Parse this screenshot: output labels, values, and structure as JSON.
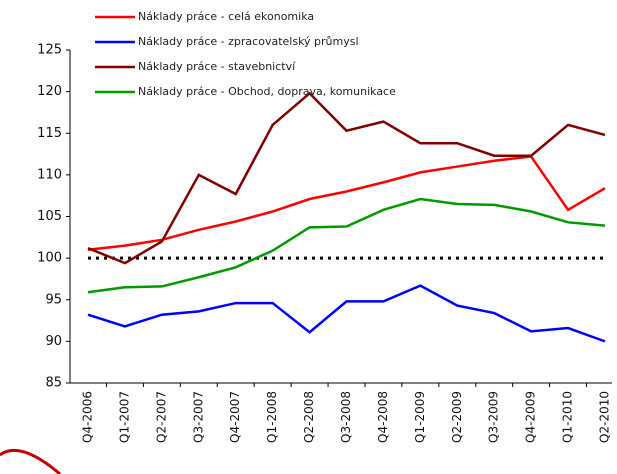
{
  "chart_data": {
    "type": "line",
    "categories": [
      "Q4-2006",
      "Q1-2007",
      "Q2-2007",
      "Q3-2007",
      "Q4-2007",
      "Q1-2008",
      "Q2-2008",
      "Q3-2008",
      "Q4-2008",
      "Q1-2009",
      "Q2-2009",
      "Q3-2009",
      "Q4-2009",
      "Q1-2010",
      "Q2-2010"
    ],
    "series": [
      {
        "name": "Náklady práce - celá ekonomika",
        "color": "#ff0000",
        "values": [
          101,
          101.5,
          102.2,
          103.4,
          104.4,
          105.6,
          107.1,
          108,
          109.1,
          110.3,
          111,
          111.7,
          112.2,
          105.8,
          108.4
        ]
      },
      {
        "name": "Náklady práce - zpracovatelský průmysl",
        "color": "#0000ff",
        "values": [
          93.2,
          91.8,
          93.2,
          93.6,
          94.6,
          94.6,
          91.1,
          94.8,
          94.8,
          96.7,
          94.3,
          93.4,
          91.2,
          91.6,
          90
        ]
      },
      {
        "name": "Náklady práce - stavebnictví",
        "color": "#800000",
        "values": [
          101.2,
          99.4,
          102,
          110,
          107.7,
          116,
          119.8,
          115.3,
          116.4,
          113.8,
          113.8,
          112.3,
          112.3,
          116,
          114.8
        ]
      },
      {
        "name": "Náklady práce - Obchod, doprava, komunikace",
        "color": "#009900",
        "values": [
          95.9,
          96.5,
          96.6,
          97.7,
          98.9,
          100.9,
          103.7,
          103.8,
          105.8,
          107.1,
          106.5,
          106.4,
          105.6,
          104.3,
          103.9
        ]
      }
    ],
    "reference_line": 100,
    "ylim": [
      85,
      125
    ],
    "yticks": [
      85,
      90,
      95,
      100,
      105,
      110,
      115,
      120,
      125
    ]
  }
}
